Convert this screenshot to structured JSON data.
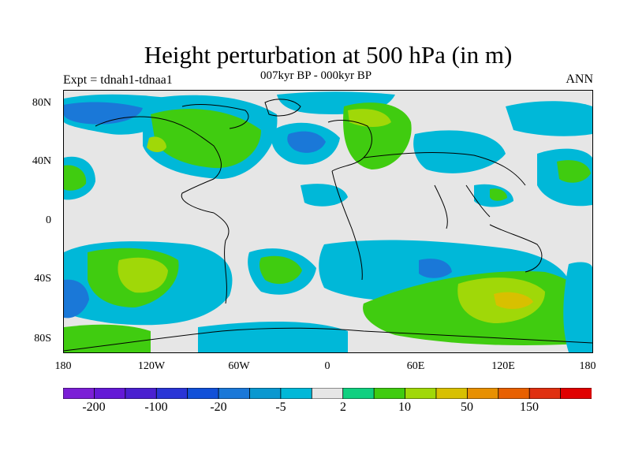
{
  "title": "Height perturbation at 500 hPa (in m)",
  "subtitle": "007kyr BP - 000kyr BP",
  "expt_label": "Expt = tdnah1-tdnaa1",
  "season": "ANN",
  "lat_labels": [
    "80N",
    "40N",
    "0",
    "40S",
    "80S"
  ],
  "lon_labels": [
    "180",
    "120W",
    "60W",
    "0",
    "60E",
    "120E",
    "180"
  ],
  "colorbar": {
    "colors": [
      "#7b1fd6",
      "#6419d6",
      "#4a20d0",
      "#2a35d6",
      "#1150d8",
      "#1a78d8",
      "#0a98d0",
      "#00b8d8",
      "#e6e6e6",
      "#10d080",
      "#40cc10",
      "#a0d808",
      "#d8c000",
      "#e89000",
      "#e86000",
      "#e03010",
      "#e00000"
    ],
    "labels": [
      "-200",
      "-100",
      "-20",
      "-5",
      "2",
      "10",
      "50",
      "150"
    ]
  },
  "field_colors": {
    "neutral": "#e6e6e6",
    "light_blue": "#00b8d8",
    "mid_blue": "#1a78d8",
    "blue": "#1150d8",
    "light_green": "#10d080",
    "green": "#40cc10",
    "yellow_green": "#a0d808",
    "yellow": "#d8c000"
  }
}
